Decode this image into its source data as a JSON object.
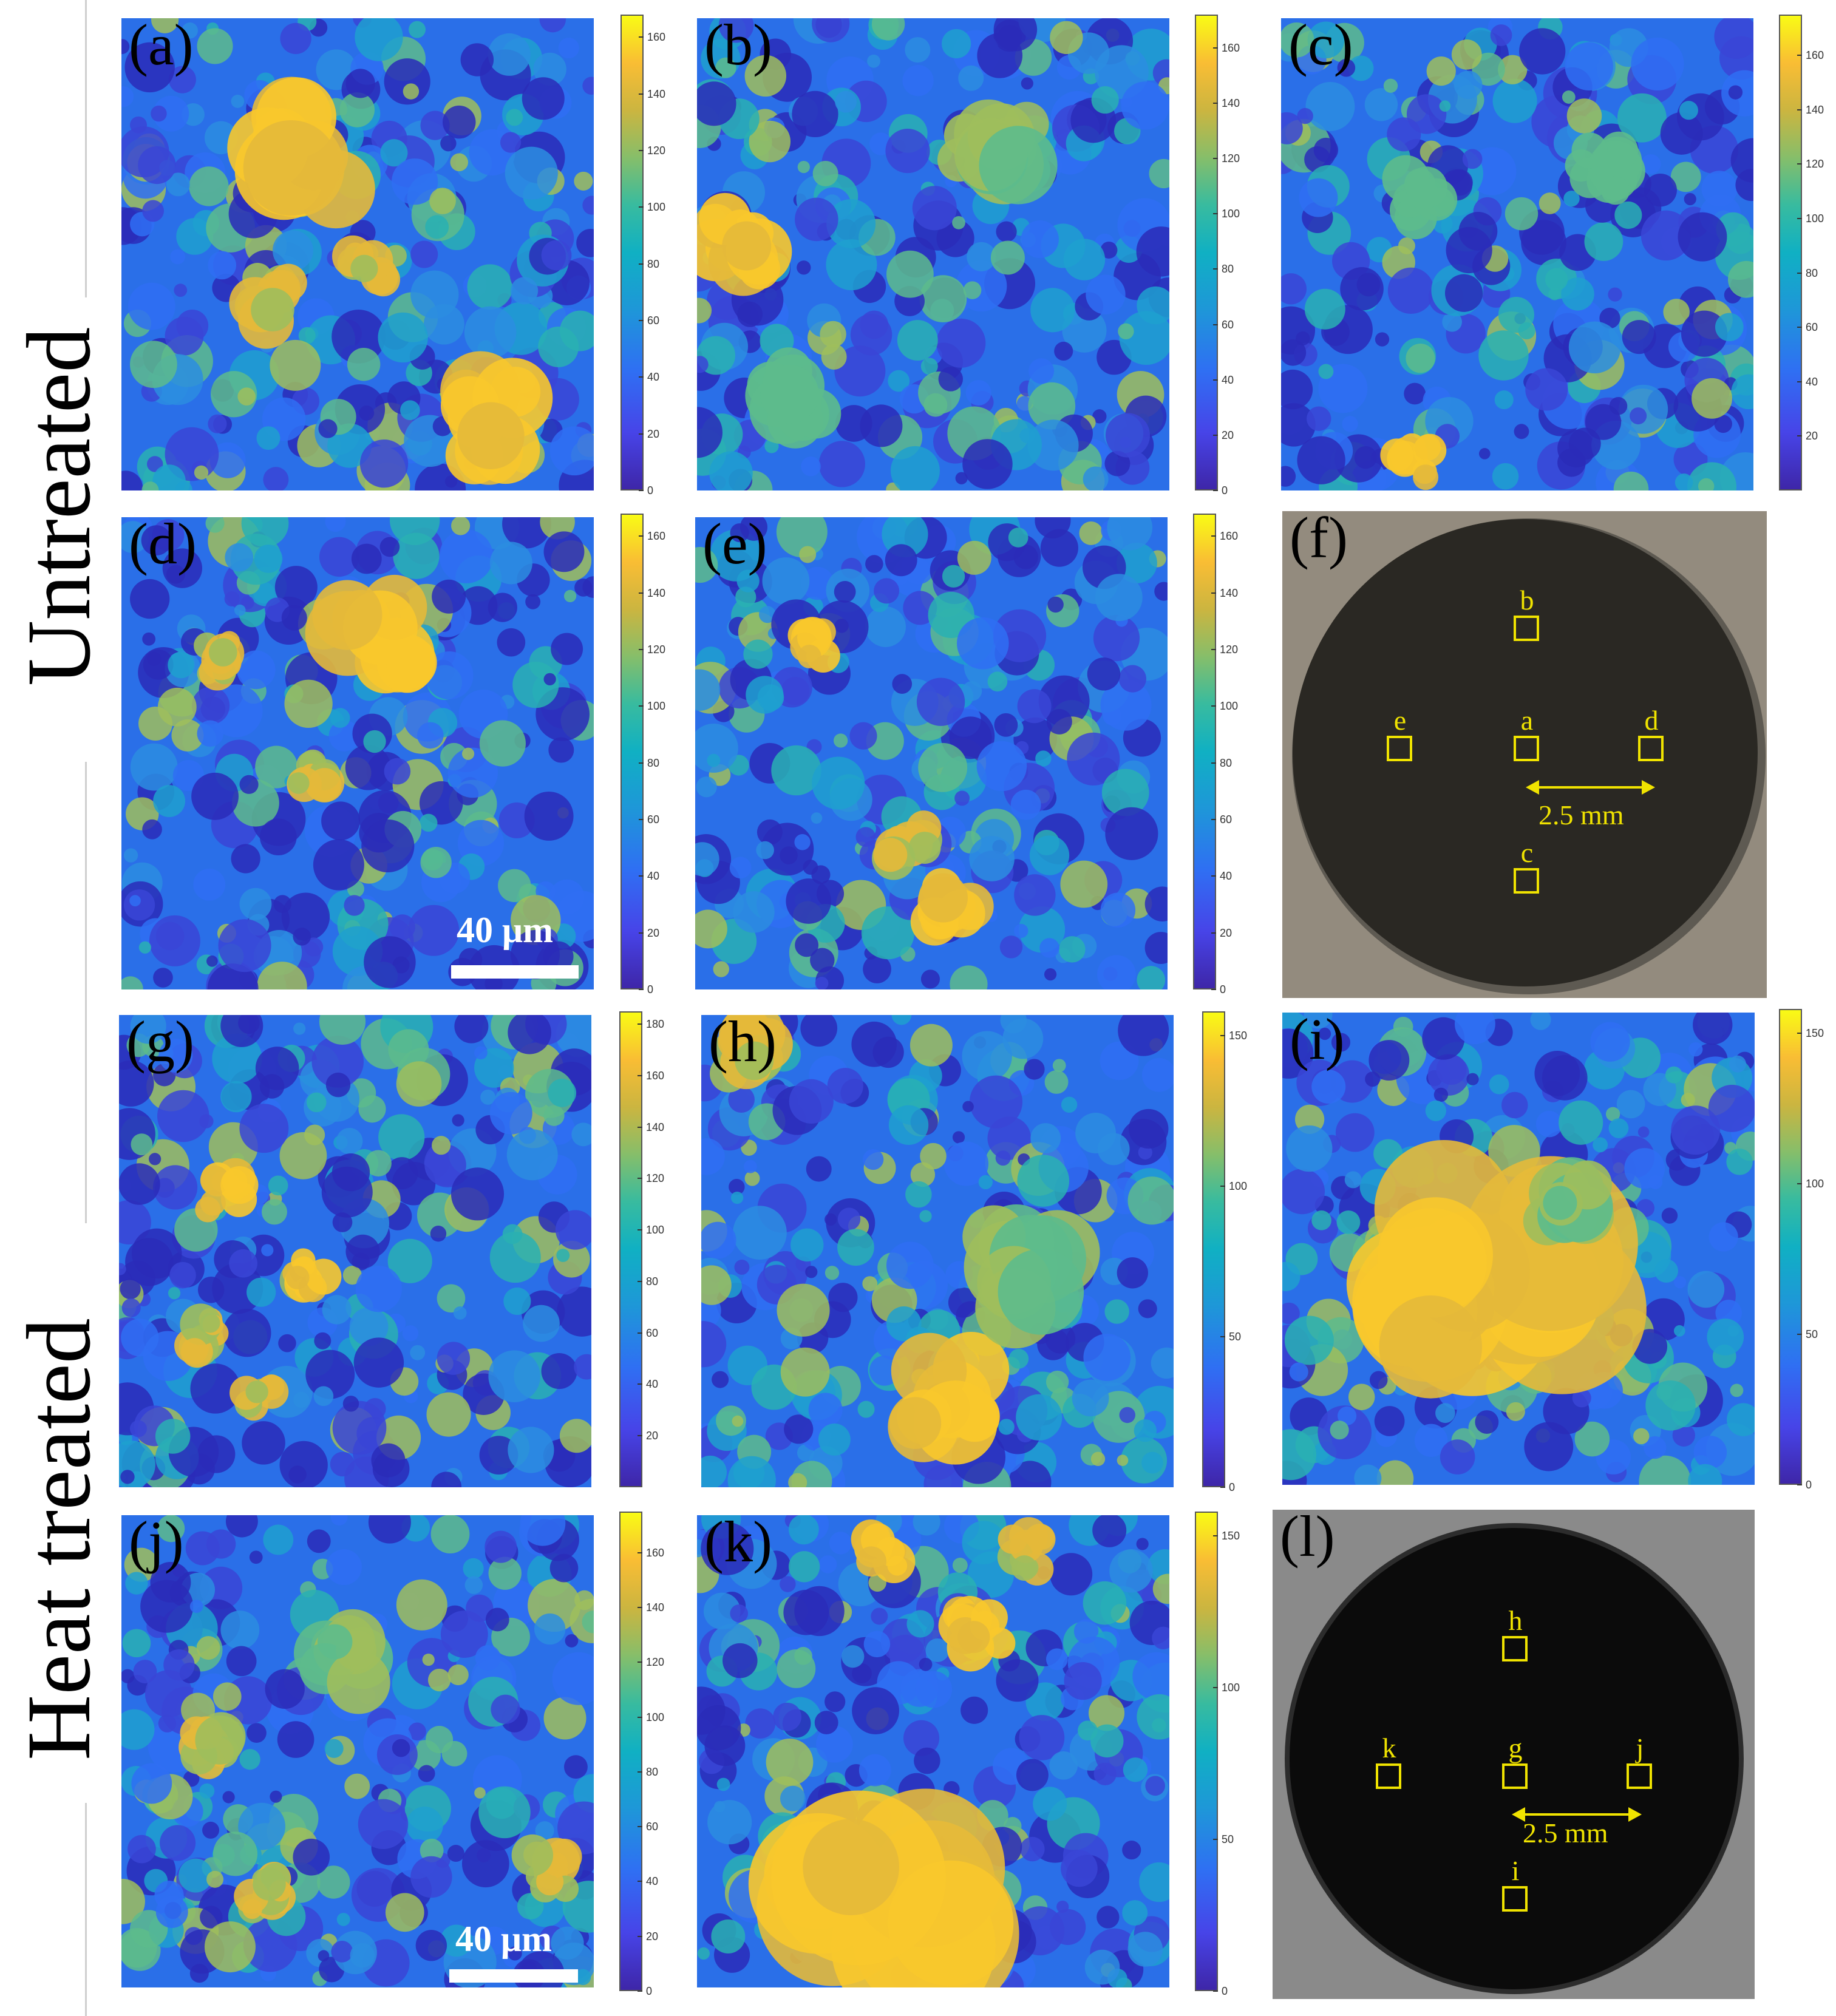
{
  "figure": {
    "row_labels": [
      "Untreated",
      "Heat treated"
    ],
    "scale_bar": "40 μm",
    "panels": [
      {
        "label": "(a)",
        "colorbar_ticks": [
          "0",
          "20",
          "40",
          "60",
          "80",
          "100",
          "120",
          "140",
          "160"
        ],
        "colorbar_max": 168
      },
      {
        "label": "(b)",
        "colorbar_ticks": [
          "0",
          "20",
          "40",
          "60",
          "80",
          "100",
          "120",
          "140",
          "160"
        ],
        "colorbar_max": 172
      },
      {
        "label": "(c)",
        "colorbar_ticks": [
          "20",
          "40",
          "60",
          "80",
          "100",
          "120",
          "140",
          "160"
        ],
        "colorbar_max": 175
      },
      {
        "label": "(d)",
        "colorbar_ticks": [
          "0",
          "20",
          "40",
          "60",
          "80",
          "100",
          "120",
          "140",
          "160"
        ],
        "colorbar_max": 168
      },
      {
        "label": "(e)",
        "colorbar_ticks": [
          "0",
          "20",
          "40",
          "60",
          "80",
          "100",
          "120",
          "140",
          "160"
        ],
        "colorbar_max": 168
      },
      {
        "label": "(f)"
      },
      {
        "label": "(g)",
        "colorbar_ticks": [
          "20",
          "40",
          "60",
          "80",
          "100",
          "120",
          "140",
          "160",
          "180"
        ],
        "colorbar_max": 185
      },
      {
        "label": "(h)",
        "colorbar_ticks": [
          "0",
          "50",
          "100",
          "150"
        ],
        "colorbar_max": 158
      },
      {
        "label": "(i)",
        "colorbar_ticks": [
          "0",
          "50",
          "100",
          "150"
        ],
        "colorbar_max": 158
      },
      {
        "label": "(j)",
        "colorbar_ticks": [
          "0",
          "20",
          "40",
          "60",
          "80",
          "100",
          "120",
          "140",
          "160"
        ],
        "colorbar_max": 175
      },
      {
        "label": "(k)",
        "colorbar_ticks": [
          "0",
          "50",
          "100",
          "150"
        ],
        "colorbar_max": 158
      },
      {
        "label": "(l)"
      }
    ],
    "photo_f": {
      "markers": [
        "b",
        "e",
        "a",
        "d",
        "c"
      ],
      "dimension": "2.5 mm"
    },
    "photo_l": {
      "markers": [
        "h",
        "k",
        "g",
        "j",
        "i"
      ],
      "dimension": "2.5 mm"
    },
    "colors": {
      "marker": "#f0e300",
      "photo_f_disc": "#2a2823",
      "photo_f_bg": "#8f877a",
      "photo_l_disc": "#0b0b0b",
      "photo_l_bg": "#8a8a8a"
    }
  }
}
